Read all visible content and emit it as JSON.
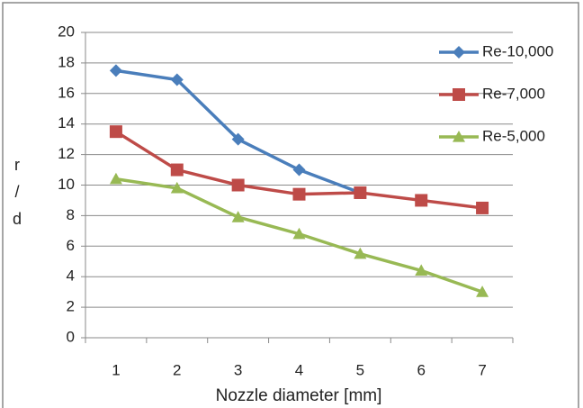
{
  "chart_data": {
    "type": "line",
    "x_label": "Nozzle diameter [mm]",
    "y_label": "r / d",
    "categories": [
      "1",
      "2",
      "3",
      "4",
      "5",
      "6",
      "7"
    ],
    "series": [
      {
        "name": "Re-10,000",
        "color": "#4a7ebb",
        "marker": "diamond",
        "values": [
          17.5,
          16.9,
          13,
          11,
          9.5,
          null,
          null
        ]
      },
      {
        "name": "Re-7,000",
        "color": "#be4b48",
        "marker": "square",
        "values": [
          13.5,
          11,
          10,
          9.4,
          9.5,
          9,
          8.5
        ]
      },
      {
        "name": "Re-5,000",
        "color": "#98b954",
        "marker": "triangle",
        "values": [
          10.4,
          9.8,
          7.9,
          6.8,
          5.5,
          4.4,
          3
        ]
      }
    ],
    "ylim": [
      0,
      20
    ],
    "yticks": [
      0,
      2,
      4,
      6,
      8,
      10,
      12,
      14,
      16,
      18,
      20
    ],
    "grid": true,
    "legend": "right"
  }
}
